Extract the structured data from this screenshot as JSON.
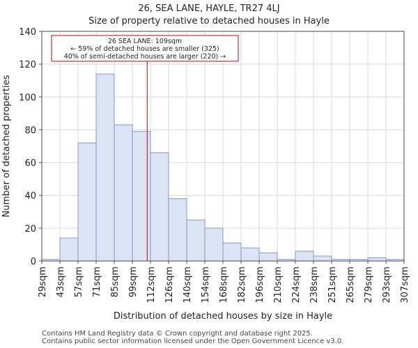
{
  "chart_data": {
    "type": "bar",
    "title": "26, SEA LANE, HAYLE, TR27 4LJ",
    "subtitle": "Size of property relative to detached houses in Hayle",
    "xlabel": "Distribution of detached houses by size in Hayle",
    "ylabel": "Number of detached properties",
    "ylim": [
      0,
      140
    ],
    "yticks": [
      0,
      20,
      40,
      60,
      80,
      100,
      120,
      140
    ],
    "xticks": [
      "29sqm",
      "43sqm",
      "57sqm",
      "71sqm",
      "85sqm",
      "99sqm",
      "112sqm",
      "126sqm",
      "140sqm",
      "154sqm",
      "168sqm",
      "182sqm",
      "196sqm",
      "210sqm",
      "224sqm",
      "238sqm",
      "251sqm",
      "265sqm",
      "279sqm",
      "293sqm",
      "307sqm"
    ],
    "values": [
      1,
      14,
      72,
      114,
      83,
      79,
      66,
      38,
      25,
      20,
      11,
      8,
      5,
      1,
      6,
      3,
      1,
      1,
      2,
      1
    ],
    "bar_color": "#dce3f4",
    "bar_edge_color": "#7f9bc8",
    "marker": {
      "value": 109,
      "label_lines": [
        "26 SEA LANE: 109sqm",
        "← 59% of detached houses are smaller (325)",
        "40% of semi-detached houses are larger (220) →"
      ],
      "color": "#cc0000"
    }
  },
  "footer": {
    "line1": "Contains HM Land Registry data © Crown copyright and database right 2025.",
    "line2": "Contains public sector information licensed under the Open Government Licence v3.0."
  }
}
